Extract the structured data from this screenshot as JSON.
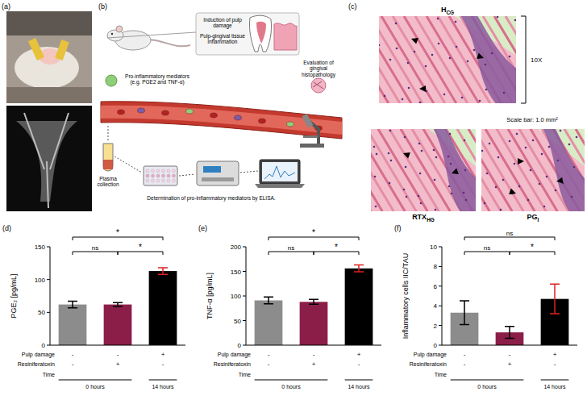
{
  "panels": [
    {
      "letter": "(a)"
    },
    {
      "letter": "(b)",
      "labels": [
        "Induction of pulp damage",
        "Pulp-gingival tissue inflammation",
        "Evaluation of gingival histopathology",
        "Pro-inflammatory mediators (e.g. PGE2 and TNF-α)",
        "Plasma collection",
        "Determination of pro-inflammatory mediators by ELISA."
      ]
    },
    {
      "letter": "(c)",
      "images": [
        {
          "label": "H",
          "sub": "CG"
        },
        {
          "label": "RTX",
          "sub": "HG"
        },
        {
          "label": "PG",
          "sub": "I"
        }
      ],
      "magnification": "10X",
      "scale_bar": "Scale bar: 1.0 mm²"
    }
  ],
  "chart_data": [
    {
      "type": "bar",
      "panel": "(d)",
      "ylabel": "PGE₂ [pg/mL]",
      "categories": [
        null,
        null,
        null
      ],
      "values": [
        62,
        62,
        113
      ],
      "errors": [
        5,
        3,
        5
      ],
      "colors": [
        "#8c8c8c",
        "#8b1e48",
        "#000000"
      ],
      "error_colors": [
        "#000000",
        "#000000",
        "#e02020"
      ],
      "ylim": [
        0,
        150
      ],
      "yticks": [
        0,
        50,
        100,
        150
      ],
      "comparisons": [
        {
          "from": 0,
          "to": 2,
          "label": "*"
        },
        {
          "from": 0,
          "to": 1,
          "label": "ns"
        },
        {
          "from": 1,
          "to": 2,
          "label": "*"
        }
      ],
      "conditions": [
        {
          "name": "Pulp damage",
          "marks": [
            "-",
            "-",
            "+"
          ]
        },
        {
          "name": "Resiniferatoxin",
          "marks": [
            "-",
            "+",
            "-"
          ]
        }
      ],
      "time": {
        "name": "Time",
        "groups": [
          {
            "label": "0 hours",
            "from": 0,
            "to": 1
          },
          {
            "label": "14 hours",
            "from": 2,
            "to": 2
          }
        ]
      }
    },
    {
      "type": "bar",
      "panel": "(e)",
      "ylabel": "TNF-α [pg/mL]",
      "categories": [
        null,
        null,
        null
      ],
      "values": [
        91,
        88,
        156
      ],
      "errors": [
        7,
        5,
        7
      ],
      "colors": [
        "#8c8c8c",
        "#8b1e48",
        "#000000"
      ],
      "error_colors": [
        "#000000",
        "#000000",
        "#e02020"
      ],
      "ylim": [
        0,
        200
      ],
      "yticks": [
        0,
        50,
        100,
        150,
        200
      ],
      "comparisons": [
        {
          "from": 0,
          "to": 2,
          "label": "*"
        },
        {
          "from": 0,
          "to": 1,
          "label": "ns"
        },
        {
          "from": 1,
          "to": 2,
          "label": "*"
        }
      ],
      "conditions": [
        {
          "name": "Pulp damage",
          "marks": [
            "-",
            "-",
            "+"
          ]
        },
        {
          "name": "Resiniferatoxin",
          "marks": [
            "-",
            "+",
            "-"
          ]
        }
      ],
      "time": {
        "name": "Time",
        "groups": [
          {
            "label": "0 hours",
            "from": 0,
            "to": 1
          },
          {
            "label": "14 hours",
            "from": 2,
            "to": 2
          }
        ]
      }
    },
    {
      "type": "bar",
      "panel": "(f)",
      "ylabel": "Inflammatory cells IIC/TAU",
      "categories": [
        null,
        null,
        null
      ],
      "values": [
        3.3,
        1.3,
        4.7
      ],
      "errors": [
        1.2,
        0.6,
        1.5
      ],
      "colors": [
        "#8c8c8c",
        "#8b1e48",
        "#000000"
      ],
      "error_colors": [
        "#000000",
        "#000000",
        "#e02020"
      ],
      "ylim": [
        0,
        10
      ],
      "yticks": [
        0,
        2,
        4,
        6,
        8,
        10
      ],
      "comparisons": [
        {
          "from": 0,
          "to": 2,
          "label": "ns"
        },
        {
          "from": 0,
          "to": 1,
          "label": "ns"
        },
        {
          "from": 1,
          "to": 2,
          "label": "*"
        }
      ],
      "conditions": [
        {
          "name": "Pulp damage",
          "marks": [
            "-",
            "-",
            "+"
          ]
        },
        {
          "name": "Resiniferatoxin",
          "marks": [
            "-",
            "+",
            "-"
          ]
        }
      ],
      "time": {
        "name": "Time",
        "groups": [
          {
            "label": "0 hours",
            "from": 0,
            "to": 1
          },
          {
            "label": "14 hours",
            "from": 2,
            "to": 2
          }
        ]
      }
    }
  ]
}
